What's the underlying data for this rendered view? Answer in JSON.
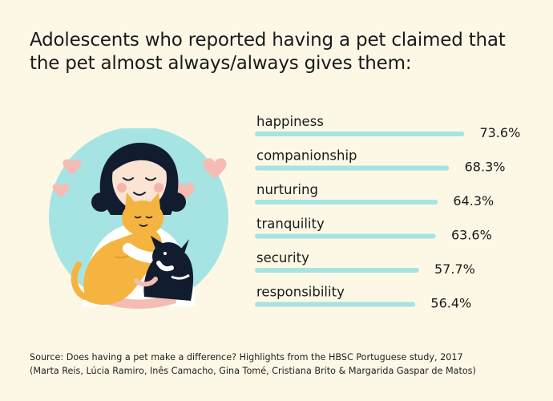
{
  "title": "Adolescents who reported having a pet claimed that the pet almost always/always gives them:",
  "source": {
    "line1": "Source: Does having a pet make a difference? Highlights from the HBSC Portuguese study, 2017",
    "line2": "(Marta Reis, Lúcia Ramiro, Inês Camacho, Gina Tomé, Cristiana Brito & Margarida Gaspar de Matos)"
  },
  "colors": {
    "bar": "#a6e4e3",
    "circle": "#a6e4e3",
    "hair": "#111d2e",
    "cat": "#f5b340",
    "heart": "#f5bcb5",
    "background": "#fdf8e6"
  },
  "illustration": {
    "icon": "girl-hugging-cat-and-dog-icon"
  },
  "chart_data": {
    "type": "bar",
    "orientation": "horizontal",
    "unit": "%",
    "categories": [
      "happiness",
      "companionship",
      "nurturing",
      "tranquility",
      "security",
      "responsibility"
    ],
    "values": [
      73.6,
      68.3,
      64.3,
      63.6,
      57.7,
      56.4
    ],
    "value_labels": [
      "73.6%",
      "68.3%",
      "64.3%",
      "63.6%",
      "57.7%",
      "56.4%"
    ],
    "title": "Adolescents who reported having a pet claimed that the pet almost always/always gives them:",
    "xlabel": "",
    "ylabel": "",
    "xlim": [
      0,
      100
    ],
    "grid": false,
    "legend": "none"
  }
}
